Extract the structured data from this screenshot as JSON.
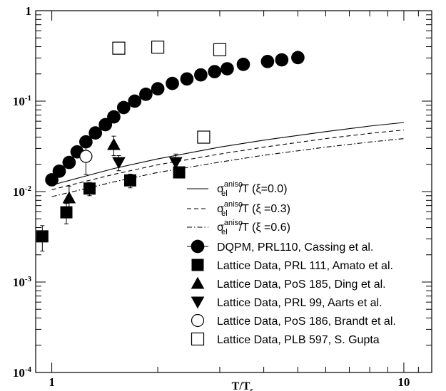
{
  "chart_data": {
    "type": "scatter",
    "x_scale": "log",
    "y_scale": "log",
    "xlim": [
      0.9,
      12
    ],
    "ylim": [
      0.0001,
      1
    ],
    "xlabel": "T/T",
    "xlabel_sub": "c",
    "x_tick_labels": [
      {
        "value": 1,
        "label": "1"
      },
      {
        "value": 10,
        "label": "10"
      }
    ],
    "y_tick_labels": [
      {
        "value": 1,
        "base": "1",
        "exp": ""
      },
      {
        "value": 0.1,
        "base": "10",
        "exp": "-1"
      },
      {
        "value": 0.01,
        "base": "10",
        "exp": "-2"
      },
      {
        "value": 0.001,
        "base": "10",
        "exp": "-3"
      },
      {
        "value": 0.0001,
        "base": "10",
        "exp": "-4"
      }
    ],
    "grid": false,
    "legend_position": "bottom-right",
    "series": [
      {
        "name": "DQPM, PRL110, Cassing et al.",
        "kind": "marker",
        "marker": "filled-circle",
        "points": [
          [
            1.0,
            0.0135
          ],
          [
            1.05,
            0.0168
          ],
          [
            1.12,
            0.021
          ],
          [
            1.18,
            0.0275
          ],
          [
            1.25,
            0.0355
          ],
          [
            1.33,
            0.0445
          ],
          [
            1.42,
            0.055
          ],
          [
            1.5,
            0.067
          ],
          [
            1.6,
            0.085
          ],
          [
            1.72,
            0.1
          ],
          [
            1.85,
            0.119
          ],
          [
            2.0,
            0.137
          ],
          [
            2.2,
            0.157
          ],
          [
            2.42,
            0.176
          ],
          [
            2.65,
            0.195
          ],
          [
            2.9,
            0.212
          ],
          [
            3.15,
            0.228
          ],
          [
            3.5,
            0.255
          ],
          [
            4.1,
            0.274
          ],
          [
            4.5,
            0.286
          ],
          [
            5.0,
            0.303
          ]
        ]
      },
      {
        "name": "Lattice Data, PRL 111, Amato et al.",
        "kind": "marker",
        "marker": "filled-square",
        "points": [
          [
            0.94,
            0.0032
          ],
          [
            1.1,
            0.0059
          ],
          [
            1.28,
            0.0108
          ],
          [
            1.67,
            0.0133
          ],
          [
            2.3,
            0.0163
          ]
        ],
        "errors": [
          0.001,
          0.0015,
          0.0018,
          0.0023,
          0.0018
        ]
      },
      {
        "name": "Lattice Data, PoS 185, Ding et al.",
        "kind": "marker",
        "marker": "filled-triangle-up",
        "points": [
          [
            1.12,
            0.0085
          ],
          [
            1.5,
            0.033
          ]
        ],
        "errors": [
          0.003,
          0.008
        ]
      },
      {
        "name": "Lattice Data, PRL 99, Aarts et al.",
        "kind": "marker",
        "marker": "filled-triangle-down",
        "points": [
          [
            1.55,
            0.021
          ],
          [
            2.25,
            0.021
          ]
        ],
        "errors": [
          0.004,
          0.005
        ]
      },
      {
        "name": "Lattice Data, PoS 186, Brandt et al.",
        "kind": "marker",
        "marker": "open-circle",
        "points": [
          [
            1.25,
            0.0245
          ]
        ],
        "errors": [
          0.009
        ]
      },
      {
        "name": "Lattice Data, PLB 597, S. Gupta",
        "kind": "marker",
        "marker": "open-square",
        "points": [
          [
            1.55,
            0.385
          ],
          [
            2.0,
            0.395
          ],
          [
            3.0,
            0.37
          ],
          [
            2.7,
            0.04
          ]
        ]
      },
      {
        "name_main": "σ",
        "name_sub": "el",
        "name_sup": "aniso",
        "name_tail": "/T (ξ=0.0)",
        "kind": "line",
        "dash": "none",
        "points": [
          [
            1.0,
            0.0118
          ],
          [
            1.5,
            0.018
          ],
          [
            2.0,
            0.023
          ],
          [
            3.0,
            0.031
          ],
          [
            4.0,
            0.037
          ],
          [
            6.0,
            0.046
          ],
          [
            8.0,
            0.053
          ],
          [
            10.0,
            0.058
          ]
        ]
      },
      {
        "name_main": "σ",
        "name_sub": "el",
        "name_sup": "aniso",
        "name_tail": "/T (ξ =0.3)",
        "kind": "line",
        "dash": "6,4",
        "points": [
          [
            1.0,
            0.0105
          ],
          [
            1.5,
            0.0155
          ],
          [
            2.0,
            0.0198
          ],
          [
            3.0,
            0.026
          ],
          [
            4.0,
            0.031
          ],
          [
            6.0,
            0.0385
          ],
          [
            8.0,
            0.044
          ],
          [
            10.0,
            0.048
          ]
        ]
      },
      {
        "name_main": "σ",
        "name_sub": "el",
        "name_sup": "aniso",
        "name_tail": "/T (ξ =0.6)",
        "kind": "line",
        "dash": "7,3,1.5,3",
        "points": [
          [
            1.0,
            0.0088
          ],
          [
            1.5,
            0.0128
          ],
          [
            2.0,
            0.0163
          ],
          [
            3.0,
            0.0212
          ],
          [
            4.0,
            0.0252
          ],
          [
            6.0,
            0.031
          ],
          [
            8.0,
            0.0353
          ],
          [
            10.0,
            0.0385
          ]
        ]
      }
    ]
  }
}
